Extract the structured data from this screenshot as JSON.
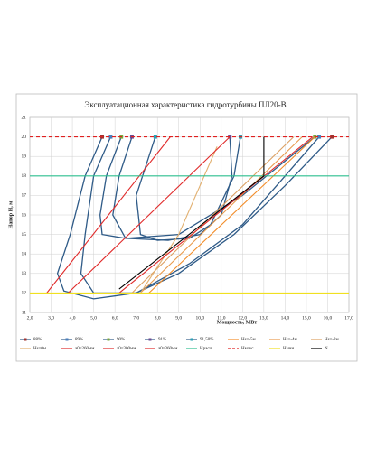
{
  "chart_data": {
    "type": "line",
    "title": "Эксплуатационная характеристика гидротурбины ПЛ20-В",
    "y_label": "Напор Н, м",
    "x_label": "Мощность, МВт",
    "xlim": [
      2,
      17
    ],
    "xticks": [
      {
        "value": 2,
        "label": "2,0"
      },
      {
        "value": 3,
        "label": "3,0"
      },
      {
        "value": 4,
        "label": "4,0"
      },
      {
        "value": 5,
        "label": "5,0"
      },
      {
        "value": 6,
        "label": "6,0"
      },
      {
        "value": 7,
        "label": "7,0"
      },
      {
        "value": 8,
        "label": "8,0"
      },
      {
        "value": 9,
        "label": "9,0"
      },
      {
        "value": 10,
        "label": "10,0"
      },
      {
        "value": 11,
        "label": "11,0"
      },
      {
        "value": 12,
        "label": "12,0"
      },
      {
        "value": 13,
        "label": "13,0"
      },
      {
        "value": 14,
        "label": "14,0"
      },
      {
        "value": 15,
        "label": "15,0"
      },
      {
        "value": 16,
        "label": "16,0"
      },
      {
        "value": 17,
        "label": "17,0"
      }
    ],
    "ylim": [
      11,
      21
    ],
    "yticks": [
      11,
      12,
      13,
      14,
      15,
      16,
      17,
      18,
      19,
      20,
      21
    ],
    "grid": true,
    "legend": "bottom",
    "series": [
      {
        "name": "88%",
        "color": "#2e5a87",
        "marker_color": "#a0322e",
        "x": [
          5.4,
          4.6,
          3.9,
          3.3,
          3.6,
          5.0,
          7.0,
          9.0,
          11.6,
          14.0,
          16.2
        ],
        "y": [
          20,
          18,
          15,
          13,
          12.1,
          11.7,
          12.0,
          13.0,
          15,
          17.5,
          20
        ]
      },
      {
        "name": "89%",
        "color": "#2e5a87",
        "marker_color": "#4a7ebb",
        "x": [
          5.8,
          5.0,
          4.6,
          4.4,
          5.0,
          7.0,
          9.5,
          12.0,
          14.0,
          15.6
        ],
        "y": [
          20,
          18,
          15,
          13,
          12.0,
          12.0,
          13.5,
          15.5,
          18,
          20
        ]
      },
      {
        "name": "90%",
        "color": "#2e5a87",
        "marker_color": "#7aa83c",
        "x": [
          6.3,
          5.6,
          5.3,
          5.4,
          6.5,
          9.0,
          12.0,
          15.4
        ],
        "y": [
          20,
          18,
          16,
          15,
          14.8,
          15.0,
          17,
          20
        ]
      },
      {
        "name": "91%",
        "color": "#2e5a87",
        "marker_color": "#6a4c93",
        "x": [
          6.8,
          6.2,
          5.9,
          6.5,
          8.5,
          10.0,
          11.0,
          11.5,
          11.4
        ],
        "y": [
          20,
          18,
          16,
          14.8,
          14.7,
          15,
          16,
          18,
          20
        ]
      },
      {
        "name": "91,50%",
        "color": "#2e5a87",
        "marker_color": "#2aa0b5",
        "x": [
          7.9,
          7.0,
          7.2,
          8.0,
          9.5,
          10.5,
          11.6,
          11.9
        ],
        "y": [
          20,
          17,
          15,
          14.7,
          14.8,
          15.5,
          18,
          20
        ]
      },
      {
        "name": "Нs=-5м",
        "color": "#f28c28",
        "x": [
          7.6,
          15.4
        ],
        "y": [
          12,
          20
        ]
      },
      {
        "name": "Нs=-4м",
        "color": "#e89a4c",
        "x": [
          7.2,
          14.8
        ],
        "y": [
          12,
          20
        ]
      },
      {
        "name": "Нs=-2м",
        "color": "#dca062",
        "x": [
          6.8,
          14.4
        ],
        "y": [
          12,
          20
        ]
      },
      {
        "name": "Нs=0м",
        "color": "#e2b070",
        "x": [
          7.2,
          9.0,
          10.8
        ],
        "y": [
          12,
          15,
          19.5
        ]
      },
      {
        "name": "а0=260мм",
        "color": "#e02a2a",
        "x": [
          2.8,
          8.6
        ],
        "y": [
          12,
          20
        ]
      },
      {
        "name": "а0=300мм",
        "color": "#e02a2a",
        "x": [
          3.8,
          11.4
        ],
        "y": [
          12,
          20
        ]
      },
      {
        "name": "а0=360мм",
        "color": "#e02a2a",
        "x": [
          6.2,
          15.3
        ],
        "y": [
          12,
          20
        ]
      },
      {
        "name": "Нрасч",
        "color": "#2dbf8f",
        "x": [
          2,
          4.6,
          9.2,
          13.0,
          17
        ],
        "y": [
          18,
          18,
          18,
          18,
          18
        ]
      },
      {
        "name": "Нмакс",
        "color": "#e02020",
        "style": "dashed",
        "x": [
          2,
          17
        ],
        "y": [
          20,
          20
        ]
      },
      {
        "name": "Нмин",
        "color": "#f0e020",
        "x": [
          2,
          17
        ],
        "y": [
          12,
          12
        ]
      },
      {
        "name": "N",
        "color": "#000000",
        "x": [
          6.2,
          13.0,
          13.0
        ],
        "y": [
          12.2,
          18,
          20
        ]
      }
    ]
  }
}
